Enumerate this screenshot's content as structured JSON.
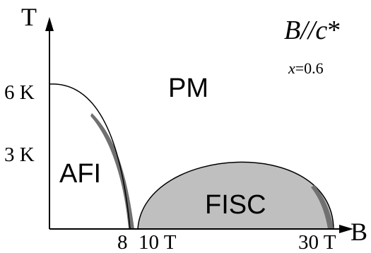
{
  "axes": {
    "y_label": "T",
    "x_label": "B",
    "y_ticks": [
      "6 K",
      "3 K"
    ],
    "x_ticks": [
      "8",
      "10 T",
      "30 T"
    ]
  },
  "annotations": {
    "field_direction": "B//c*",
    "field_direction_parts": {
      "main": "B",
      "sep": "//",
      "c": "c",
      "star": "*"
    },
    "composition_var": "x",
    "composition_value": "=0.6"
  },
  "phases": {
    "pm": "PM",
    "afi": "AFI",
    "fisc": "FISC"
  },
  "colors": {
    "line": "#000000",
    "fisc_fill": "#bfbfbf",
    "boundary_shade": "#707070",
    "background": "#ffffff"
  }
}
